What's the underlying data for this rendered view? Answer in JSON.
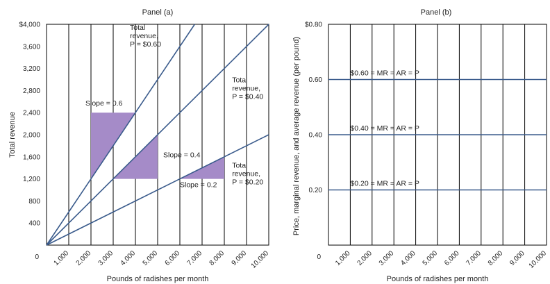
{
  "chart_data": [
    {
      "type": "line",
      "title": "Panel (a)",
      "xlabel": "Pounds of radishes per month",
      "ylabel": "Total revenue",
      "xlim": [
        0,
        10000
      ],
      "ylim": [
        0,
        4000
      ],
      "origin_label": "0",
      "x_ticks": [
        "1,000",
        "2,000",
        "3,000",
        "4,000",
        "5,000",
        "6,000",
        "7,000",
        "8,000",
        "9,000",
        "10,000"
      ],
      "x_tick_values": [
        1000,
        2000,
        3000,
        4000,
        5000,
        6000,
        7000,
        8000,
        9000,
        10000
      ],
      "y_ticks": [
        "400",
        "800",
        "1,200",
        "1,600",
        "2,000",
        "2,400",
        "2,800",
        "3,200",
        "3,600",
        "$4,000"
      ],
      "y_tick_values": [
        400,
        800,
        1200,
        1600,
        2000,
        2400,
        2800,
        3200,
        3600,
        4000
      ],
      "grid": "vertical",
      "series": [
        {
          "slope": 0.6,
          "x": [
            0,
            6667
          ],
          "y": [
            0,
            4000
          ]
        },
        {
          "slope": 0.4,
          "x": [
            0,
            10000
          ],
          "y": [
            0,
            4000
          ]
        },
        {
          "slope": 0.2,
          "x": [
            0,
            10000
          ],
          "y": [
            0,
            2000
          ]
        }
      ],
      "slope_triangles": [
        {
          "x1": 2000,
          "x2": 4000,
          "ybase": 1200,
          "ytop": 2400,
          "side": "vertical-left"
        },
        {
          "x1": 3000,
          "x2": 5000,
          "ybase": 1200,
          "ytop": 2000,
          "side": "vertical-right"
        },
        {
          "x1": 6000,
          "x2": 8000,
          "ybase": 1200,
          "ytop": 1600,
          "side": "vertical-right"
        }
      ],
      "annotations": [
        {
          "lines": [
            "Total",
            "revenue,",
            "P = $0.60"
          ],
          "x": 3750,
          "y": 3900
        },
        {
          "lines": [
            "Total",
            "revenue,",
            "P = $0.40"
          ],
          "x": 8350,
          "y": 2950
        },
        {
          "lines": [
            "Total",
            "revenue,",
            "P = $0.20"
          ],
          "x": 8350,
          "y": 1400
        },
        {
          "lines": [
            "Slope = 0.6"
          ],
          "x": 1750,
          "y": 2530
        },
        {
          "lines": [
            "Slope = 0.4"
          ],
          "x": 5250,
          "y": 1590
        },
        {
          "lines": [
            "Slope = 0.2"
          ],
          "x": 6000,
          "y": 1050
        }
      ]
    },
    {
      "type": "line",
      "title": "Panel (b)",
      "xlabel": "Pounds of radishes per month",
      "ylabel": "Price, marginal revenue, and average revenue (per pound)",
      "xlim": [
        0,
        10000
      ],
      "ylim": [
        0,
        0.8
      ],
      "origin_label": "0",
      "x_ticks": [
        "1,000",
        "2,000",
        "3,000",
        "4,000",
        "5,000",
        "6,000",
        "7,000",
        "8,000",
        "9,000",
        "10,000"
      ],
      "x_tick_values": [
        1000,
        2000,
        3000,
        4000,
        5000,
        6000,
        7000,
        8000,
        9000,
        10000
      ],
      "y_ticks": [
        "0.20",
        "0.40",
        "0.60",
        "$0.80"
      ],
      "y_tick_values": [
        0.2,
        0.4,
        0.6,
        0.8
      ],
      "grid": "vertical",
      "series": [
        {
          "label": "$0.60 = MR = AR = P",
          "x": [
            0,
            10000
          ],
          "y": [
            0.6,
            0.6
          ]
        },
        {
          "label": "$0.40 = MR = AR = P",
          "x": [
            0,
            10000
          ],
          "y": [
            0.4,
            0.4
          ]
        },
        {
          "label": "$0.20 = MR = AR = P",
          "x": [
            0,
            10000
          ],
          "y": [
            0.2,
            0.2
          ]
        }
      ]
    }
  ]
}
